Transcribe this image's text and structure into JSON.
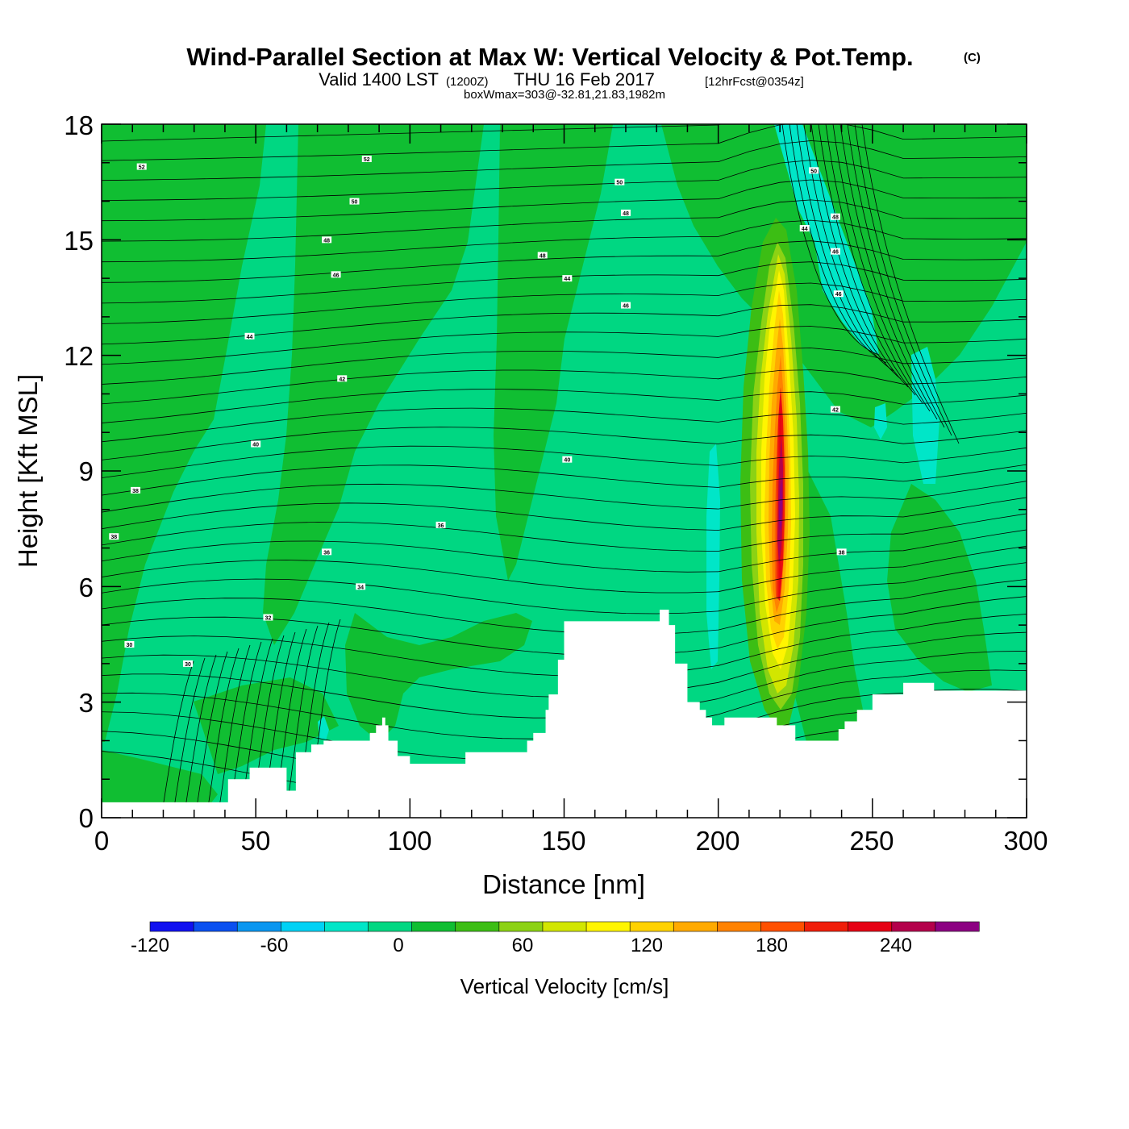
{
  "chart_data": {
    "type": "heatmap",
    "title": "Wind-Parallel Section at Max W: Vertical Velocity & Pot.Temp.",
    "title_mark": "(C)",
    "subtitle_main": "Valid 1400 LST",
    "subtitle_utc": "(1200Z)",
    "subtitle_date": "THU 16 Feb 2017",
    "subtitle_fcst": "[12hrFcst@0354z]",
    "subtitle_box": "boxWmax=303@-32.81,21.83,1982m",
    "xlabel": "Distance [nm]",
    "ylabel": "Height [Kft MSL]",
    "xlim": [
      0,
      300
    ],
    "ylim": [
      0,
      18
    ],
    "x_ticks": [
      "0",
      "50",
      "100",
      "150",
      "200",
      "250",
      "300"
    ],
    "y_ticks": [
      "0",
      "3",
      "6",
      "9",
      "12",
      "15",
      "18"
    ],
    "colorbar": {
      "label": "Vertical Velocity [cm/s]",
      "min": -120,
      "max": 280,
      "step": 20,
      "tick_labels": [
        "-120",
        "-60",
        "0",
        "60",
        "120",
        "180",
        "240"
      ],
      "colors": [
        "#1010f0",
        "#0a50f0",
        "#0a96f0",
        "#00d2f5",
        "#00e6c8",
        "#00d782",
        "#10be32",
        "#3cbe14",
        "#8cd214",
        "#d2e600",
        "#fff500",
        "#ffd200",
        "#ffaa00",
        "#ff8200",
        "#ff5000",
        "#f01e0a",
        "#e60014",
        "#b4004b",
        "#8c0082"
      ]
    },
    "updraft_core": {
      "distance_nm": 220,
      "max_vertical_velocity_cm_s": 303,
      "core_height_kft": 9
    },
    "terrain_kft": {
      "distance_nm": [
        0,
        34,
        41,
        48,
        57,
        60,
        63,
        68,
        72,
        87,
        89,
        91,
        92,
        93,
        96,
        100,
        111,
        118,
        136,
        138,
        140,
        144,
        145,
        148,
        150,
        177,
        181,
        184,
        186,
        190,
        194,
        196,
        198,
        202,
        210,
        219,
        225,
        233,
        239,
        241,
        245,
        250,
        260,
        270,
        290,
        300
      ],
      "height_kft": [
        0.4,
        0.4,
        1.0,
        1.3,
        1.3,
        0.7,
        1.7,
        1.9,
        2.0,
        2.2,
        2.4,
        2.6,
        2.4,
        2.0,
        1.6,
        1.4,
        1.4,
        1.7,
        1.7,
        2.0,
        2.2,
        2.8,
        3.2,
        4.1,
        5.1,
        5.1,
        5.4,
        5.0,
        4.0,
        3.0,
        2.8,
        2.6,
        2.4,
        2.6,
        2.6,
        2.4,
        2.0,
        2.0,
        2.3,
        2.5,
        2.8,
        3.2,
        3.5,
        3.3,
        3.3,
        3.0
      ]
    },
    "theta_contour_labels": [
      {
        "text": "52",
        "x_nm": 13,
        "y_kft": 16.9
      },
      {
        "text": "52",
        "x_nm": 86,
        "y_kft": 17.1
      },
      {
        "text": "50",
        "x_nm": 82,
        "y_kft": 16.0
      },
      {
        "text": "50",
        "x_nm": 168,
        "y_kft": 16.5
      },
      {
        "text": "48",
        "x_nm": 73,
        "y_kft": 15.0
      },
      {
        "text": "48",
        "x_nm": 170,
        "y_kft": 15.7
      },
      {
        "text": "48",
        "x_nm": 143,
        "y_kft": 14.6
      },
      {
        "text": "46",
        "x_nm": 76,
        "y_kft": 14.1
      },
      {
        "text": "44",
        "x_nm": 151,
        "y_kft": 14.0
      },
      {
        "text": "44",
        "x_nm": 48,
        "y_kft": 12.5
      },
      {
        "text": "44",
        "x_nm": 228,
        "y_kft": 15.3
      },
      {
        "text": "46",
        "x_nm": 170,
        "y_kft": 13.3
      },
      {
        "text": "42",
        "x_nm": 78,
        "y_kft": 11.4
      },
      {
        "text": "40",
        "x_nm": 50,
        "y_kft": 9.7
      },
      {
        "text": "40",
        "x_nm": 151,
        "y_kft": 9.3
      },
      {
        "text": "38",
        "x_nm": 11,
        "y_kft": 8.5
      },
      {
        "text": "38",
        "x_nm": 4,
        "y_kft": 7.3
      },
      {
        "text": "36",
        "x_nm": 110,
        "y_kft": 7.6
      },
      {
        "text": "36",
        "x_nm": 73,
        "y_kft": 6.9
      },
      {
        "text": "34",
        "x_nm": 84,
        "y_kft": 6.0
      },
      {
        "text": "32",
        "x_nm": 54,
        "y_kft": 5.2
      },
      {
        "text": "30",
        "x_nm": 9,
        "y_kft": 4.5
      },
      {
        "text": "30",
        "x_nm": 28,
        "y_kft": 4.0
      },
      {
        "text": "50",
        "x_nm": 231,
        "y_kft": 16.8
      },
      {
        "text": "48",
        "x_nm": 238,
        "y_kft": 15.6
      },
      {
        "text": "46",
        "x_nm": 238,
        "y_kft": 14.7
      },
      {
        "text": "46",
        "x_nm": 239,
        "y_kft": 13.6
      },
      {
        "text": "42",
        "x_nm": 238,
        "y_kft": 10.6
      },
      {
        "text": "38",
        "x_nm": 240,
        "y_kft": 6.9
      }
    ]
  }
}
